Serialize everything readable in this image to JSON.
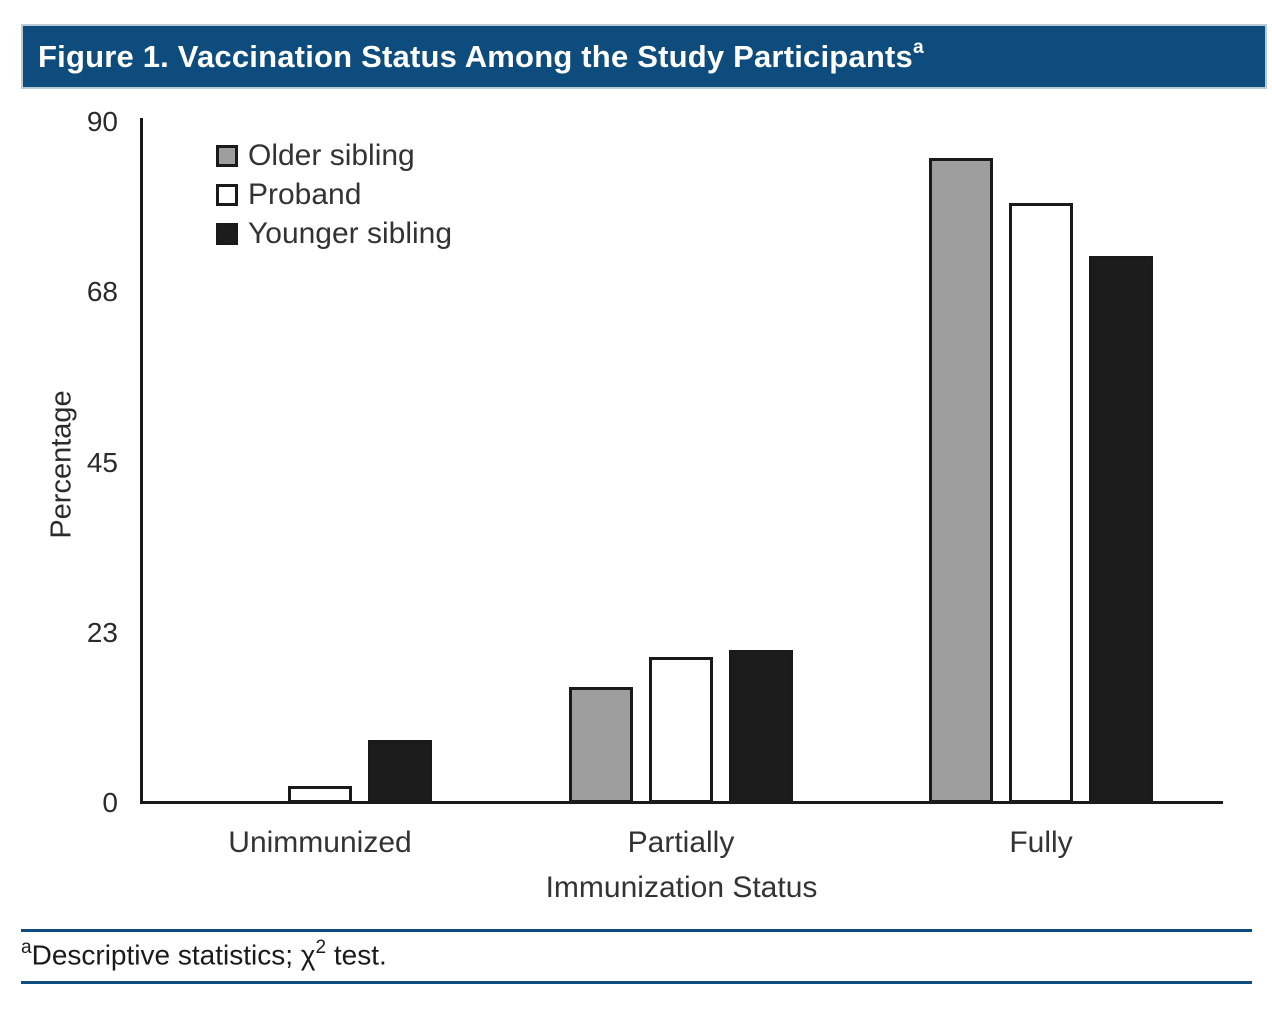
{
  "title": {
    "text": "Figure 1. Vaccination Status Among the Study Participants",
    "superscript": "a"
  },
  "chart_data": {
    "type": "bar",
    "title": "Figure 1. Vaccination Status Among the Study Participants",
    "categories": [
      "Unimmunized",
      "Partially",
      "Fully"
    ],
    "series": [
      {
        "name": "Older sibling",
        "values": [
          0,
          15,
          85
        ],
        "fill": "#9E9E9E"
      },
      {
        "name": "Proband",
        "values": [
          2,
          19,
          79
        ],
        "fill": "#FFFFFF"
      },
      {
        "name": "Younger sibling",
        "values": [
          8,
          20,
          72
        ],
        "fill": "#1C1C1C"
      }
    ],
    "xlabel": "Immunization Status",
    "ylabel": "Percentage",
    "ylim": [
      0,
      90
    ],
    "yticks": [
      {
        "label": "0",
        "value": 0
      },
      {
        "label": "23",
        "value": 22.5
      },
      {
        "label": "45",
        "value": 45
      },
      {
        "label": "68",
        "value": 67.5
      },
      {
        "label": "90",
        "value": 90
      }
    ],
    "grid": false,
    "legend_position": "top-left",
    "bar_border_color": "#1A1A1A"
  },
  "footnote": {
    "marker": "a",
    "body": "Descriptive statistics; χ",
    "exponent": "2",
    "tail": " test."
  },
  "colors": {
    "header_bg": "#0D4C7D",
    "header_text": "#FFFFFF",
    "rule": "#0D4C7D",
    "axis": "#1A1A1A"
  }
}
